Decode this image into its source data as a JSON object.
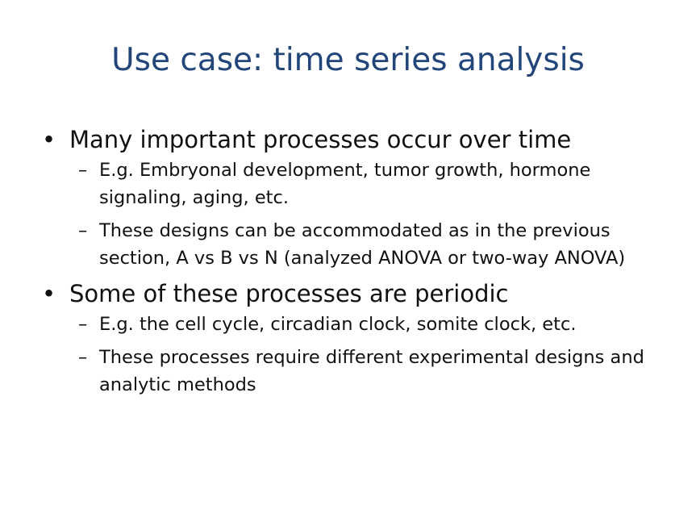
{
  "slide": {
    "title": "Use case: time series analysis",
    "bullet_marker": "•",
    "sub_marker": "–",
    "bullets": [
      {
        "text": "Many important processes occur over time",
        "subs": [
          "E.g. Embryonal development, tumor growth, hormone signaling, aging, etc.",
          "These designs can be accommodated as in the previous section, A vs B vs N (analyzed ANOVA or two-way ANOVA)"
        ]
      },
      {
        "text": "Some of these processes are periodic",
        "subs": [
          "E.g. the cell cycle, circadian clock, somite clock, etc.",
          "These processes require different experimental designs and analytic methods"
        ]
      }
    ]
  }
}
